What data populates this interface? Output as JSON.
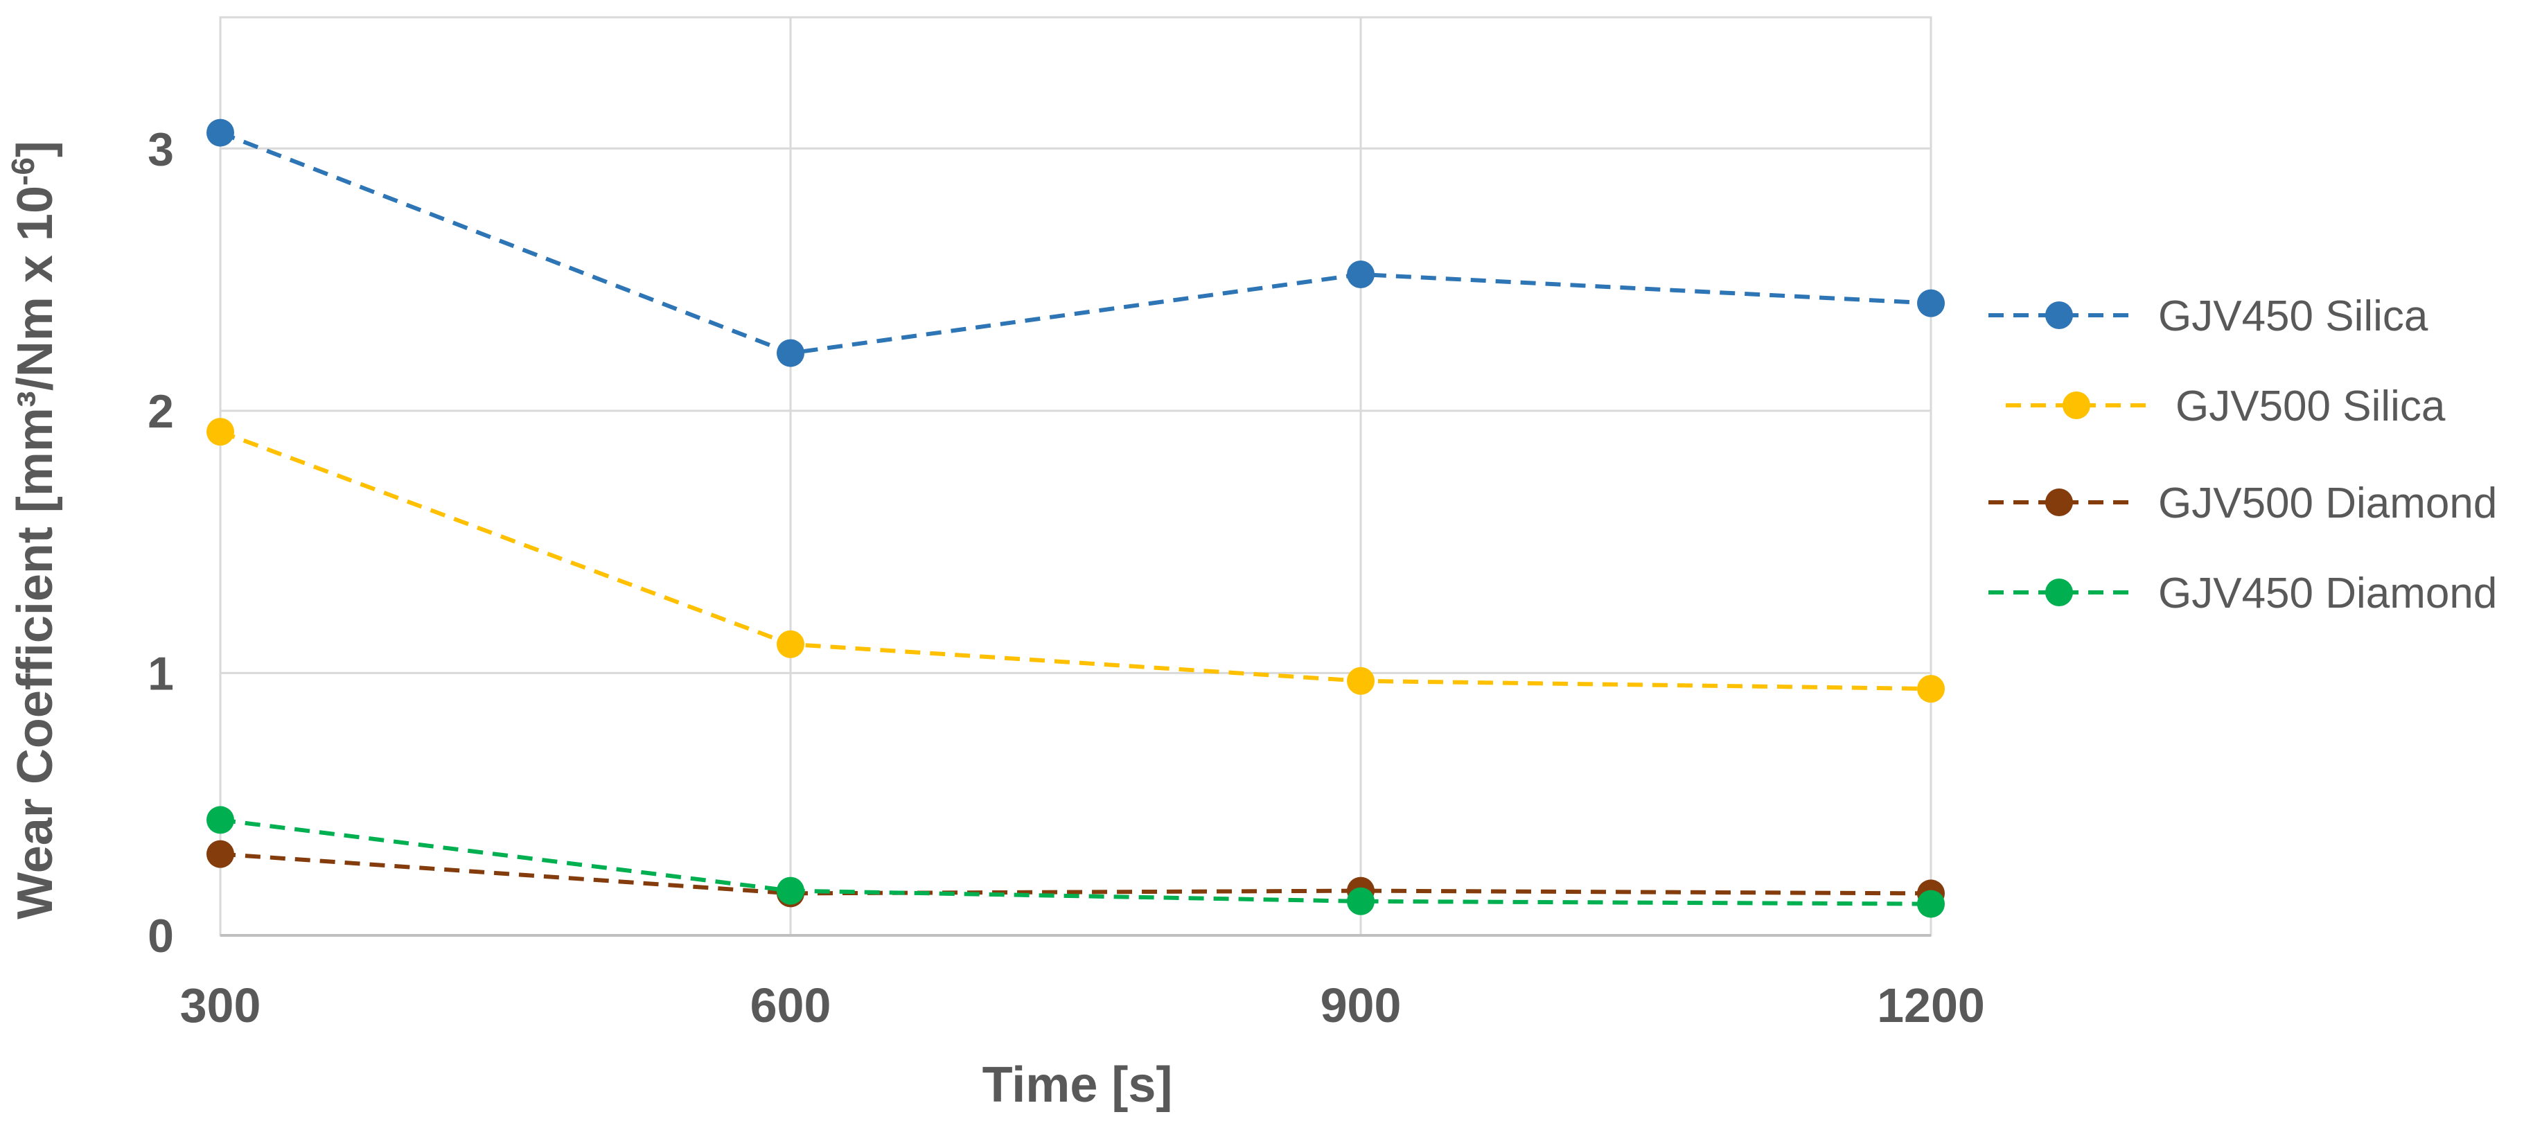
{
  "chart_data": {
    "type": "line",
    "title": "",
    "xlabel": "Time [s]",
    "ylabel": "Wear Coefficient [mm³/Nm x 10⁻⁶]",
    "categories": [
      "300",
      "600",
      "900",
      "1200"
    ],
    "x": [
      300,
      600,
      900,
      1200
    ],
    "xlim": [
      300,
      1200
    ],
    "ylim": [
      0,
      3.5
    ],
    "y_ticks": [
      0,
      1,
      2,
      3
    ],
    "grid": true,
    "legend_position": "right",
    "line_style": "dashed",
    "series": [
      {
        "name": "GJV450 Silica",
        "color": "#2E75B6",
        "values": [
          3.06,
          2.22,
          2.52,
          2.41
        ]
      },
      {
        "name": "GJV500 Silica",
        "color": "#FFC000",
        "values": [
          1.92,
          1.11,
          0.97,
          0.94
        ]
      },
      {
        "name": "GJV500 Diamond",
        "color": "#843C0C",
        "values": [
          0.31,
          0.16,
          0.17,
          0.16
        ]
      },
      {
        "name": "GJV450 Diamond",
        "color": "#00B050",
        "values": [
          0.44,
          0.17,
          0.13,
          0.12
        ]
      }
    ]
  }
}
